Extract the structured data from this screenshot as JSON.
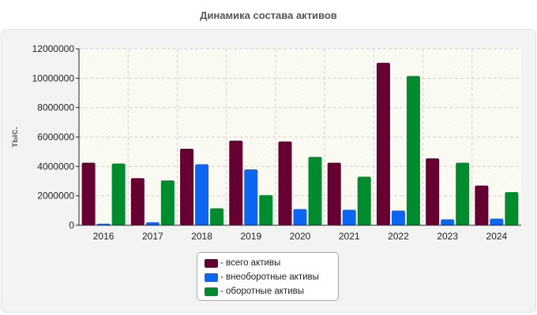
{
  "chart_data": {
    "type": "bar",
    "title": "Динамика состава активов",
    "xlabel": "",
    "ylabel": "тыс.",
    "categories": [
      "2016",
      "2017",
      "2018",
      "2019",
      "2020",
      "2021",
      "2022",
      "2023",
      "2024"
    ],
    "ylim": [
      0,
      12000000
    ],
    "yticks": [
      0,
      2000000,
      4000000,
      6000000,
      8000000,
      10000000,
      12000000
    ],
    "ytick_labels": [
      "0",
      "2000000",
      "4000000",
      "6000000",
      "8000000",
      "10000000",
      "12000000"
    ],
    "grid": true,
    "legend_position": "bottom",
    "series": [
      {
        "name": "- всего активы",
        "color": "#660033",
        "values": [
          4250000,
          3200000,
          5200000,
          5750000,
          5700000,
          4250000,
          11050000,
          4550000,
          2700000
        ]
      },
      {
        "name": "- внеоборотные активы",
        "color": "#0d66f2",
        "values": [
          100000,
          200000,
          4150000,
          3800000,
          1100000,
          1050000,
          1000000,
          400000,
          450000
        ]
      },
      {
        "name": "- оборотные активы",
        "color": "#008c2e",
        "values": [
          4200000,
          3050000,
          1150000,
          2050000,
          4650000,
          3300000,
          10150000,
          4250000,
          2250000
        ]
      }
    ]
  }
}
